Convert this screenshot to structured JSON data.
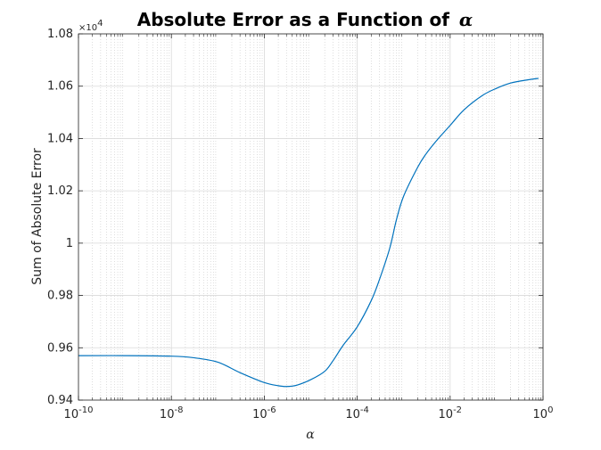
{
  "chart_data": {
    "type": "line",
    "title": "Absolute Error as a Function of",
    "title_symbol": "α",
    "xlabel": "α",
    "ylabel": "Sum of Absolute Error",
    "xscale": "log",
    "xlim": [
      1e-10,
      1
    ],
    "ylim": [
      0.94,
      1.08
    ],
    "y_multiplier": "×10",
    "y_multiplier_exp": "4",
    "grid": true,
    "minor_grid_x": true,
    "x_ticks": [
      {
        "value": 1e-10,
        "base": "10",
        "exp": "-10"
      },
      {
        "value": 1e-08,
        "base": "10",
        "exp": "-8"
      },
      {
        "value": 1e-06,
        "base": "10",
        "exp": "-6"
      },
      {
        "value": 0.0001,
        "base": "10",
        "exp": "-4"
      },
      {
        "value": 0.01,
        "base": "10",
        "exp": "-2"
      },
      {
        "value": 1,
        "base": "10",
        "exp": "0"
      }
    ],
    "y_ticks": [
      {
        "value": 0.94,
        "label": "0.94"
      },
      {
        "value": 0.96,
        "label": "0.96"
      },
      {
        "value": 0.98,
        "label": "0.98"
      },
      {
        "value": 1.0,
        "label": "1"
      },
      {
        "value": 1.02,
        "label": "1.02"
      },
      {
        "value": 1.04,
        "label": "1.04"
      },
      {
        "value": 1.06,
        "label": "1.06"
      },
      {
        "value": 1.08,
        "label": "1.08"
      }
    ],
    "series": [
      {
        "color": "#0072bd",
        "x": [
          1e-10,
          1e-09,
          1e-08,
          3e-08,
          1e-07,
          3e-07,
          1e-06,
          2e-06,
          3e-06,
          5e-06,
          1e-05,
          2e-05,
          3e-05,
          5e-05,
          0.0001,
          0.0002,
          0.0003,
          0.0005,
          0.0007,
          0.001,
          0.002,
          0.003,
          0.005,
          0.01,
          0.02,
          0.05,
          0.1,
          0.2,
          0.5,
          0.8
        ],
        "y": [
          0.957,
          0.957,
          0.9568,
          0.9562,
          0.9545,
          0.9505,
          0.9467,
          0.9455,
          0.9452,
          0.9457,
          0.9478,
          0.951,
          0.955,
          0.961,
          0.968,
          0.978,
          0.986,
          0.998,
          1.009,
          1.018,
          1.029,
          1.034,
          1.039,
          1.045,
          1.051,
          1.0565,
          1.0592,
          1.0612,
          1.0625,
          1.063
        ]
      }
    ]
  }
}
